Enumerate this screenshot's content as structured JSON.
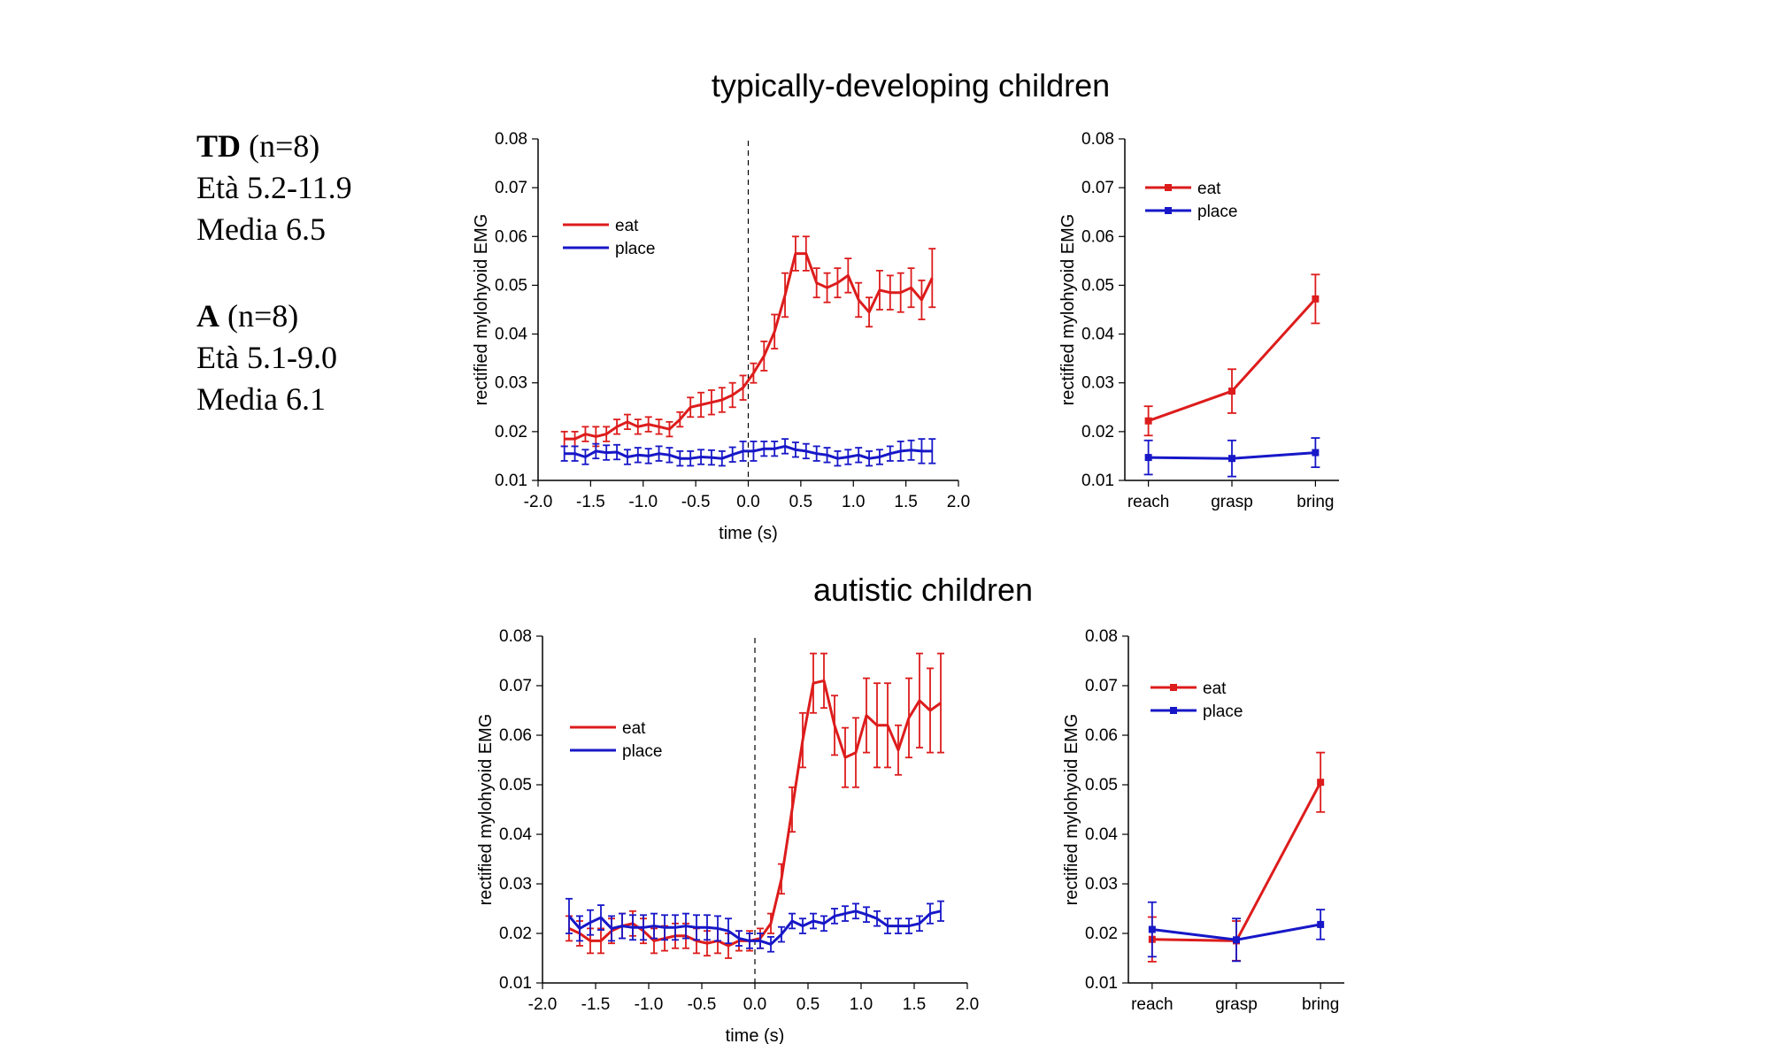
{
  "groups": [
    {
      "label": "TD",
      "n": "(n=8)",
      "age": "Età 5.2-11.9",
      "mean": "Media 6.5"
    },
    {
      "label": "A",
      "n": "(n=8)",
      "age": "Età 5.1-9.0",
      "mean": "Media 6.1"
    }
  ],
  "colors": {
    "eat": "#dd1c1c",
    "place": "#1717c8"
  },
  "chart_data": [
    {
      "type": "line",
      "title": "typically-developing children",
      "xlabel": "time (s)",
      "ylabel": "rectified mylohyoid EMG",
      "xlim": [
        -2.0,
        2.0
      ],
      "ylim": [
        0.01,
        0.08
      ],
      "x_ticks": [
        "-2.0",
        "-1.5",
        "-1.0",
        "-0.5",
        "0.0",
        "0.5",
        "1.0",
        "1.5",
        "2.0"
      ],
      "y_ticks": [
        "0.01",
        "0.02",
        "0.03",
        "0.04",
        "0.05",
        "0.06",
        "0.07",
        "0.08"
      ],
      "vline_x": 0.0,
      "legend_position": "top-left",
      "x": [
        -1.75,
        -1.65,
        -1.55,
        -1.45,
        -1.35,
        -1.25,
        -1.15,
        -1.05,
        -0.95,
        -0.85,
        -0.75,
        -0.65,
        -0.55,
        -0.45,
        -0.35,
        -0.25,
        -0.15,
        -0.05,
        0.05,
        0.15,
        0.25,
        0.35,
        0.45,
        0.55,
        0.65,
        0.75,
        0.85,
        0.95,
        1.05,
        1.15,
        1.25,
        1.35,
        1.45,
        1.55,
        1.65,
        1.75
      ],
      "series": [
        {
          "name": "eat",
          "color": "#dd1c1c",
          "values": [
            0.0185,
            0.0185,
            0.0195,
            0.019,
            0.0195,
            0.021,
            0.022,
            0.021,
            0.0215,
            0.021,
            0.0205,
            0.0225,
            0.025,
            0.0255,
            0.026,
            0.0265,
            0.0275,
            0.029,
            0.032,
            0.0355,
            0.0405,
            0.048,
            0.0565,
            0.0565,
            0.0505,
            0.0495,
            0.0505,
            0.052,
            0.047,
            0.0445,
            0.049,
            0.0485,
            0.0485,
            0.0495,
            0.047,
            0.0515
          ],
          "errors": [
            0.0015,
            0.0015,
            0.0015,
            0.002,
            0.0015,
            0.0015,
            0.0015,
            0.0015,
            0.0015,
            0.0015,
            0.0015,
            0.0015,
            0.002,
            0.0025,
            0.0025,
            0.0025,
            0.0025,
            0.0025,
            0.002,
            0.003,
            0.0035,
            0.0045,
            0.0035,
            0.0035,
            0.003,
            0.003,
            0.003,
            0.0035,
            0.0035,
            0.003,
            0.004,
            0.0035,
            0.004,
            0.004,
            0.004,
            0.006
          ]
        },
        {
          "name": "place",
          "color": "#1717c8",
          "values": [
            0.0155,
            0.0155,
            0.0148,
            0.016,
            0.0157,
            0.0158,
            0.0148,
            0.0152,
            0.015,
            0.0155,
            0.0152,
            0.0145,
            0.0145,
            0.0148,
            0.0147,
            0.0145,
            0.0153,
            0.016,
            0.016,
            0.0165,
            0.0165,
            0.017,
            0.0163,
            0.016,
            0.0155,
            0.0152,
            0.0145,
            0.0148,
            0.0152,
            0.0145,
            0.0148,
            0.0155,
            0.016,
            0.0162,
            0.016,
            0.016
          ],
          "errors": [
            0.0015,
            0.0015,
            0.0015,
            0.0015,
            0.0015,
            0.0015,
            0.0015,
            0.0015,
            0.0015,
            0.0015,
            0.0015,
            0.0015,
            0.0015,
            0.0015,
            0.0015,
            0.0015,
            0.0015,
            0.002,
            0.002,
            0.0015,
            0.0015,
            0.0015,
            0.0015,
            0.0015,
            0.0015,
            0.0015,
            0.0015,
            0.0015,
            0.0015,
            0.0015,
            0.0015,
            0.0015,
            0.002,
            0.002,
            0.0025,
            0.0025
          ]
        }
      ]
    },
    {
      "type": "line",
      "xlabel": "",
      "ylabel": "rectified mylohyoid EMG",
      "ylim": [
        0.01,
        0.08
      ],
      "y_ticks": [
        "0.01",
        "0.02",
        "0.03",
        "0.04",
        "0.05",
        "0.06",
        "0.07",
        "0.08"
      ],
      "categories": [
        "reach",
        "grasp",
        "bring"
      ],
      "legend_position": "top-left",
      "series": [
        {
          "name": "eat",
          "color": "#dd1c1c",
          "values": [
            0.0222,
            0.0283,
            0.0472
          ],
          "errors": [
            0.003,
            0.0045,
            0.005
          ]
        },
        {
          "name": "place",
          "color": "#1717c8",
          "values": [
            0.0147,
            0.0145,
            0.0157
          ],
          "errors": [
            0.0035,
            0.0037,
            0.003
          ]
        }
      ]
    },
    {
      "type": "line",
      "title": "autistic children",
      "xlabel": "time (s)",
      "ylabel": "rectified mylohyoid EMG",
      "xlim": [
        -2.0,
        2.0
      ],
      "ylim": [
        0.01,
        0.08
      ],
      "x_ticks": [
        "-2.0",
        "-1.5",
        "-1.0",
        "-0.5",
        "0.0",
        "0.5",
        "1.0",
        "1.5",
        "2.0"
      ],
      "y_ticks": [
        "0.01",
        "0.02",
        "0.03",
        "0.04",
        "0.05",
        "0.06",
        "0.07",
        "0.08"
      ],
      "vline_x": 0.0,
      "legend_position": "top-left",
      "x": [
        -1.75,
        -1.65,
        -1.55,
        -1.45,
        -1.35,
        -1.25,
        -1.15,
        -1.05,
        -0.95,
        -0.85,
        -0.75,
        -0.65,
        -0.55,
        -0.45,
        -0.35,
        -0.25,
        -0.15,
        -0.05,
        0.05,
        0.15,
        0.25,
        0.35,
        0.45,
        0.55,
        0.65,
        0.75,
        0.85,
        0.95,
        1.05,
        1.15,
        1.25,
        1.35,
        1.45,
        1.55,
        1.65,
        1.75
      ],
      "series": [
        {
          "name": "eat",
          "color": "#dd1c1c",
          "values": [
            0.021,
            0.02,
            0.0185,
            0.0185,
            0.0205,
            0.0215,
            0.022,
            0.0205,
            0.0185,
            0.019,
            0.0195,
            0.0195,
            0.0185,
            0.018,
            0.0185,
            0.0175,
            0.0185,
            0.0185,
            0.019,
            0.022,
            0.031,
            0.045,
            0.059,
            0.0705,
            0.071,
            0.062,
            0.0555,
            0.0565,
            0.064,
            0.062,
            0.062,
            0.057,
            0.0635,
            0.067,
            0.065,
            0.0665
          ],
          "errors": [
            0.0025,
            0.0025,
            0.0025,
            0.0025,
            0.0025,
            0.0025,
            0.0025,
            0.0025,
            0.0025,
            0.0025,
            0.0025,
            0.0025,
            0.0025,
            0.0025,
            0.0025,
            0.0025,
            0.002,
            0.002,
            0.002,
            0.002,
            0.003,
            0.0045,
            0.0055,
            0.006,
            0.0055,
            0.006,
            0.006,
            0.007,
            0.0075,
            0.0085,
            0.0085,
            0.005,
            0.008,
            0.0095,
            0.0085,
            0.01
          ]
        },
        {
          "name": "place",
          "color": "#1717c8",
          "values": [
            0.0235,
            0.021,
            0.0222,
            0.0232,
            0.021,
            0.0215,
            0.0212,
            0.0212,
            0.0215,
            0.0212,
            0.0212,
            0.0215,
            0.0212,
            0.0212,
            0.021,
            0.0205,
            0.019,
            0.0185,
            0.0185,
            0.0178,
            0.0198,
            0.0225,
            0.0215,
            0.0225,
            0.022,
            0.0235,
            0.024,
            0.0245,
            0.0238,
            0.023,
            0.0215,
            0.0215,
            0.0215,
            0.022,
            0.024,
            0.0245
          ],
          "errors": [
            0.0035,
            0.0025,
            0.0025,
            0.0025,
            0.0025,
            0.0025,
            0.0025,
            0.0025,
            0.0025,
            0.0025,
            0.0025,
            0.0025,
            0.0025,
            0.0025,
            0.0025,
            0.0025,
            0.0015,
            0.0015,
            0.0015,
            0.0015,
            0.0015,
            0.0015,
            0.0015,
            0.0015,
            0.0015,
            0.0015,
            0.0015,
            0.0015,
            0.0015,
            0.0015,
            0.0015,
            0.0015,
            0.0015,
            0.0015,
            0.002,
            0.002
          ]
        }
      ]
    },
    {
      "type": "line",
      "xlabel": "",
      "ylabel": "rectified mylohyoid EMG",
      "ylim": [
        0.01,
        0.08
      ],
      "y_ticks": [
        "0.01",
        "0.02",
        "0.03",
        "0.04",
        "0.05",
        "0.06",
        "0.07",
        "0.08"
      ],
      "categories": [
        "reach",
        "grasp",
        "bring"
      ],
      "legend_position": "top-left",
      "series": [
        {
          "name": "eat",
          "color": "#dd1c1c",
          "values": [
            0.0188,
            0.0185,
            0.0505
          ],
          "errors": [
            0.0045,
            0.004,
            0.006
          ]
        },
        {
          "name": "place",
          "color": "#1717c8",
          "values": [
            0.0208,
            0.0187,
            0.0218
          ],
          "errors": [
            0.0055,
            0.0043,
            0.003
          ]
        }
      ]
    }
  ]
}
